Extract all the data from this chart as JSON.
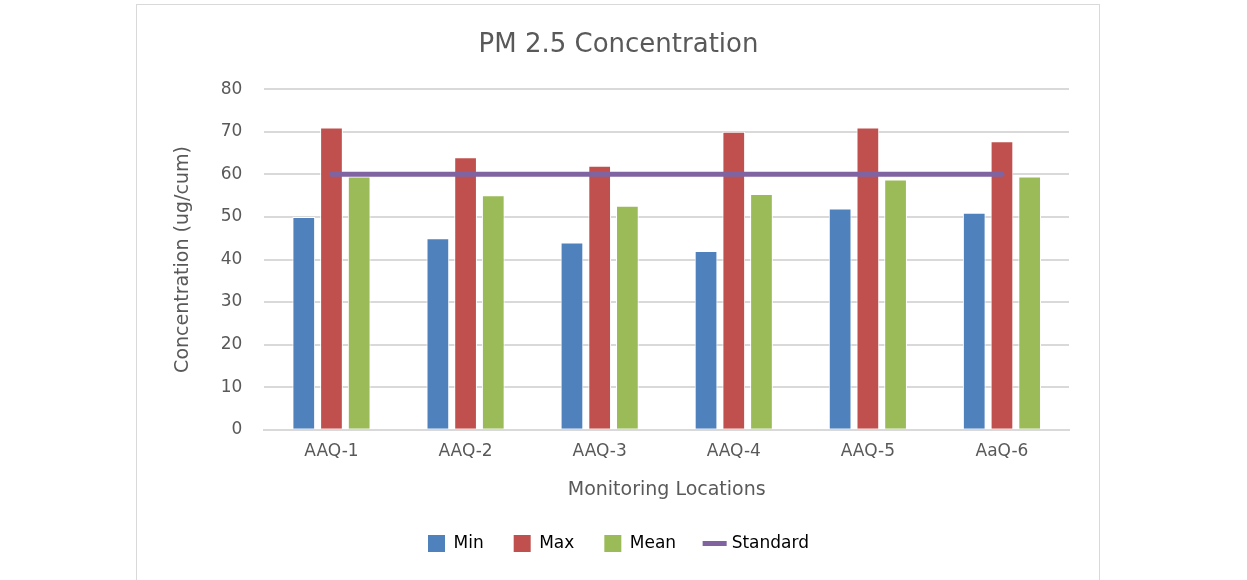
{
  "chart_data": {
    "type": "bar",
    "title": "PM 2.5 Concentration",
    "xlabel": "Monitoring Locations",
    "ylabel": "Concentration (ug/cum)",
    "categories": [
      "AAQ-1",
      "AAQ-2",
      "AAQ-3",
      "AAQ-4",
      "AAQ-5",
      "AaQ-6"
    ],
    "series": [
      {
        "name": "Min",
        "color": "#4f81bd",
        "values": [
          50,
          45,
          44,
          42,
          52,
          51
        ]
      },
      {
        "name": "Max",
        "color": "#c0504d",
        "values": [
          71,
          64,
          62,
          70,
          71,
          67.8
        ]
      },
      {
        "name": "Mean",
        "color": "#9bbb59",
        "values": [
          59.5,
          55.1,
          52.6,
          55.4,
          58.8,
          59.5
        ]
      },
      {
        "name": "Standard",
        "type": "line",
        "color": "#8064a2",
        "values": [
          60,
          60,
          60,
          60,
          60,
          60
        ]
      }
    ],
    "ylim": [
      0,
      80
    ],
    "yticks": [
      0,
      10,
      20,
      30,
      40,
      50,
      60,
      70,
      80
    ],
    "grid": "y",
    "legend": "bottom",
    "marker": "none"
  }
}
